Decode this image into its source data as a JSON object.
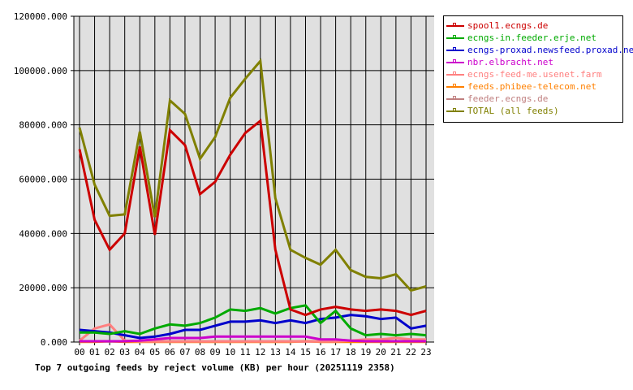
{
  "chart_data": {
    "type": "line",
    "title": "Top 7 outgoing feeds by reject volume (KB) per hour (20251119 2358)",
    "xlabel": "",
    "ylabel": "",
    "ylim": [
      0,
      120000
    ],
    "grid": true,
    "legend_position": "right-top",
    "y_ticks": [
      "0.000",
      "20000.000",
      "40000.000",
      "60000.000",
      "80000.000",
      "100000.000",
      "120000.000"
    ],
    "categories": [
      "00",
      "01",
      "02",
      "03",
      "04",
      "05",
      "06",
      "07",
      "08",
      "09",
      "10",
      "11",
      "12",
      "13",
      "14",
      "15",
      "16",
      "17",
      "18",
      "19",
      "20",
      "21",
      "22",
      "23"
    ],
    "series": [
      {
        "name": "spool1.ecngs.de",
        "color": "#cc0000",
        "values": [
          71000,
          45000,
          34000,
          40000,
          72000,
          39500,
          78000,
          72500,
          54500,
          59000,
          69000,
          77000,
          81500,
          34000,
          12000,
          10000,
          12000,
          13000,
          12000,
          11500,
          12000,
          11500,
          10000,
          11500
        ]
      },
      {
        "name": "ecngs-in.feeder.erje.net",
        "color": "#00aa00",
        "values": [
          3500,
          3500,
          3000,
          4000,
          3000,
          5000,
          6500,
          6000,
          7000,
          9000,
          12000,
          11500,
          12500,
          10500,
          12500,
          13500,
          7000,
          11500,
          5000,
          2500,
          3000,
          2500,
          3000,
          2500
        ]
      },
      {
        "name": "ecngs-proxad.newsfeed.proxad.net",
        "color": "#0000cc",
        "values": [
          4500,
          4000,
          3500,
          2500,
          1500,
          2000,
          3000,
          4500,
          4500,
          6000,
          7500,
          7500,
          8000,
          7000,
          8000,
          7000,
          8500,
          9000,
          10000,
          9500,
          8500,
          9000,
          5000,
          6000
        ]
      },
      {
        "name": "nbr.elbracht.net",
        "color": "#cc00cc",
        "values": [
          300,
          300,
          300,
          300,
          500,
          1000,
          1500,
          1500,
          1500,
          2000,
          2000,
          2000,
          2000,
          2000,
          2000,
          2000,
          1000,
          1000,
          500,
          300,
          300,
          300,
          300,
          300
        ]
      },
      {
        "name": "ecngs-feed-me.usenet.farm",
        "color": "#ff8080",
        "values": [
          500,
          5000,
          6500,
          500,
          200,
          200,
          200,
          200,
          200,
          200,
          200,
          200,
          200,
          200,
          200,
          200,
          200,
          200,
          500,
          1000,
          1000,
          1500,
          1000,
          1000
        ]
      },
      {
        "name": "feeds.phibee-telecom.net",
        "color": "#ff8000",
        "values": [
          100,
          100,
          300,
          100,
          100,
          100,
          100,
          100,
          100,
          100,
          100,
          100,
          100,
          100,
          100,
          300,
          100,
          100,
          100,
          100,
          100,
          100,
          100,
          100
        ]
      },
      {
        "name": "feeder.ecngs.de",
        "color": "#c08080",
        "values": [
          200,
          200,
          200,
          200,
          200,
          200,
          200,
          200,
          200,
          200,
          200,
          200,
          200,
          200,
          200,
          200,
          200,
          200,
          200,
          200,
          200,
          200,
          200,
          200
        ]
      },
      {
        "name": "TOTAL (all feeds)",
        "color": "#808000",
        "values": [
          79000,
          58000,
          46500,
          47000,
          77500,
          46000,
          89000,
          84000,
          67500,
          75500,
          90000,
          97000,
          103500,
          53000,
          34000,
          31000,
          28500,
          34000,
          26500,
          24000,
          23500,
          25000,
          19000,
          20500
        ]
      }
    ]
  },
  "legend": {
    "items": [
      {
        "label": "spool1.ecngs.de",
        "color": "#cc0000"
      },
      {
        "label": "ecngs-in.feeder.erje.net",
        "color": "#00aa00"
      },
      {
        "label": "ecngs-proxad.newsfeed.proxad.net",
        "color": "#0000cc"
      },
      {
        "label": "nbr.elbracht.net",
        "color": "#cc00cc"
      },
      {
        "label": "ecngs-feed-me.usenet.farm",
        "color": "#ff8080"
      },
      {
        "label": "feeds.phibee-telecom.net",
        "color": "#ff8000"
      },
      {
        "label": "feeder.ecngs.de",
        "color": "#c08080"
      },
      {
        "label": "TOTAL (all feeds)",
        "color": "#808000"
      }
    ]
  },
  "colors": {
    "plot_background": "#e0e0e0",
    "grid": "#000000",
    "page_background": "#ffffff"
  }
}
